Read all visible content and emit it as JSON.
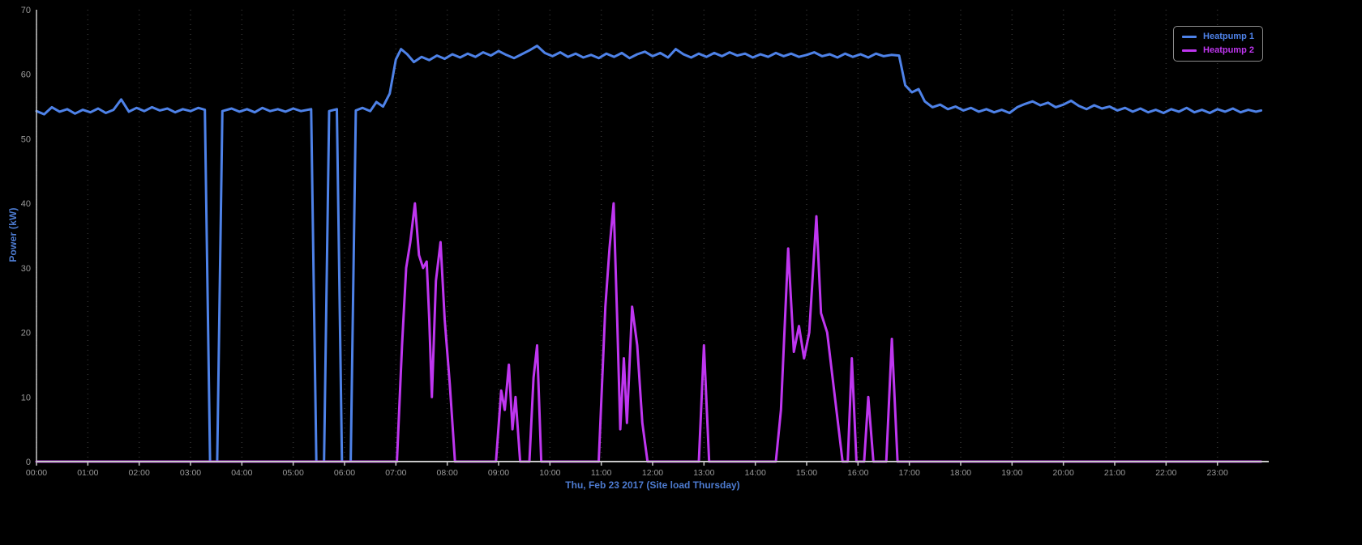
{
  "chart_data": {
    "type": "line",
    "title": "",
    "xlabel": "Thu, Feb 23 2017 (Site load Thursday)",
    "ylabel": "Power (kW)",
    "x_unit": "hours",
    "xlim": [
      0,
      24
    ],
    "ylim": [
      0,
      70
    ],
    "grid": "vertical-dotted",
    "legend_position": "top-right",
    "background": "#000000",
    "grid_color": "#333333",
    "axis_color": "#c8c8c8",
    "tick_label_color": "#9a9a9a",
    "axis_title_color": "#4d7bd0",
    "legend_border_color": "#8c8c8c",
    "y_ticks": [
      0,
      10,
      20,
      30,
      40,
      50,
      60,
      70
    ],
    "x_ticks": [
      {
        "t": 0,
        "label": "00:00"
      },
      {
        "t": 1,
        "label": "01:00"
      },
      {
        "t": 2,
        "label": "02:00"
      },
      {
        "t": 3,
        "label": "03:00"
      },
      {
        "t": 4,
        "label": "04:00"
      },
      {
        "t": 5,
        "label": "05:00"
      },
      {
        "t": 6,
        "label": "06:00"
      },
      {
        "t": 7,
        "label": "07:00"
      },
      {
        "t": 8,
        "label": "08:00"
      },
      {
        "t": 9,
        "label": "09:00"
      },
      {
        "t": 10,
        "label": "10:00"
      },
      {
        "t": 11,
        "label": "11:00"
      },
      {
        "t": 12,
        "label": "12:00"
      },
      {
        "t": 13,
        "label": "13:00"
      },
      {
        "t": 14,
        "label": "14:00"
      },
      {
        "t": 15,
        "label": "15:00"
      },
      {
        "t": 16,
        "label": "16:00"
      },
      {
        "t": 17,
        "label": "17:00"
      },
      {
        "t": 18,
        "label": "18:00"
      },
      {
        "t": 19,
        "label": "19:00"
      },
      {
        "t": 20,
        "label": "20:00"
      },
      {
        "t": 21,
        "label": "21:00"
      },
      {
        "t": 22,
        "label": "22:00"
      },
      {
        "t": 23,
        "label": "23:00"
      }
    ],
    "series": [
      {
        "name": "Heatpump 1",
        "color": "#4e82e8",
        "points": [
          [
            0.0,
            54.3
          ],
          [
            0.15,
            53.8
          ],
          [
            0.3,
            54.9
          ],
          [
            0.45,
            54.2
          ],
          [
            0.6,
            54.6
          ],
          [
            0.75,
            53.9
          ],
          [
            0.9,
            54.5
          ],
          [
            1.05,
            54.1
          ],
          [
            1.2,
            54.7
          ],
          [
            1.35,
            54.0
          ],
          [
            1.5,
            54.5
          ],
          [
            1.65,
            56.1
          ],
          [
            1.8,
            54.2
          ],
          [
            1.95,
            54.8
          ],
          [
            2.1,
            54.3
          ],
          [
            2.25,
            54.9
          ],
          [
            2.4,
            54.4
          ],
          [
            2.55,
            54.7
          ],
          [
            2.7,
            54.1
          ],
          [
            2.85,
            54.6
          ],
          [
            3.0,
            54.3
          ],
          [
            3.15,
            54.8
          ],
          [
            3.28,
            54.5
          ],
          [
            3.38,
            0
          ],
          [
            3.52,
            0
          ],
          [
            3.62,
            54.3
          ],
          [
            3.8,
            54.7
          ],
          [
            3.95,
            54.2
          ],
          [
            4.1,
            54.6
          ],
          [
            4.25,
            54.1
          ],
          [
            4.4,
            54.8
          ],
          [
            4.55,
            54.3
          ],
          [
            4.7,
            54.6
          ],
          [
            4.85,
            54.2
          ],
          [
            5.0,
            54.7
          ],
          [
            5.15,
            54.3
          ],
          [
            5.35,
            54.6
          ],
          [
            5.45,
            0
          ],
          [
            5.6,
            0
          ],
          [
            5.7,
            54.3
          ],
          [
            5.85,
            54.6
          ],
          [
            5.95,
            0
          ],
          [
            6.12,
            0
          ],
          [
            6.22,
            54.4
          ],
          [
            6.35,
            54.8
          ],
          [
            6.5,
            54.3
          ],
          [
            6.62,
            55.7
          ],
          [
            6.75,
            55.0
          ],
          [
            6.88,
            57.0
          ],
          [
            7.0,
            62.3
          ],
          [
            7.1,
            63.9
          ],
          [
            7.22,
            63.1
          ],
          [
            7.35,
            61.9
          ],
          [
            7.5,
            62.7
          ],
          [
            7.65,
            62.2
          ],
          [
            7.8,
            62.9
          ],
          [
            7.95,
            62.4
          ],
          [
            8.1,
            63.1
          ],
          [
            8.25,
            62.6
          ],
          [
            8.4,
            63.2
          ],
          [
            8.55,
            62.7
          ],
          [
            8.7,
            63.4
          ],
          [
            8.85,
            62.9
          ],
          [
            9.0,
            63.6
          ],
          [
            9.15,
            63.0
          ],
          [
            9.3,
            62.5
          ],
          [
            9.45,
            63.1
          ],
          [
            9.6,
            63.7
          ],
          [
            9.75,
            64.4
          ],
          [
            9.9,
            63.3
          ],
          [
            10.05,
            62.8
          ],
          [
            10.2,
            63.4
          ],
          [
            10.35,
            62.7
          ],
          [
            10.5,
            63.2
          ],
          [
            10.65,
            62.6
          ],
          [
            10.8,
            63.0
          ],
          [
            10.95,
            62.5
          ],
          [
            11.1,
            63.2
          ],
          [
            11.25,
            62.7
          ],
          [
            11.4,
            63.3
          ],
          [
            11.55,
            62.5
          ],
          [
            11.7,
            63.1
          ],
          [
            11.85,
            63.5
          ],
          [
            12.0,
            62.8
          ],
          [
            12.15,
            63.3
          ],
          [
            12.3,
            62.6
          ],
          [
            12.45,
            63.9
          ],
          [
            12.6,
            63.1
          ],
          [
            12.75,
            62.6
          ],
          [
            12.9,
            63.2
          ],
          [
            13.05,
            62.7
          ],
          [
            13.2,
            63.3
          ],
          [
            13.35,
            62.8
          ],
          [
            13.5,
            63.4
          ],
          [
            13.65,
            62.9
          ],
          [
            13.8,
            63.2
          ],
          [
            13.95,
            62.6
          ],
          [
            14.1,
            63.1
          ],
          [
            14.25,
            62.7
          ],
          [
            14.4,
            63.3
          ],
          [
            14.55,
            62.8
          ],
          [
            14.7,
            63.2
          ],
          [
            14.85,
            62.7
          ],
          [
            15.0,
            63.0
          ],
          [
            15.15,
            63.4
          ],
          [
            15.3,
            62.8
          ],
          [
            15.45,
            63.1
          ],
          [
            15.6,
            62.6
          ],
          [
            15.75,
            63.2
          ],
          [
            15.9,
            62.7
          ],
          [
            16.05,
            63.1
          ],
          [
            16.2,
            62.6
          ],
          [
            16.35,
            63.2
          ],
          [
            16.5,
            62.8
          ],
          [
            16.65,
            63.0
          ],
          [
            16.8,
            62.9
          ],
          [
            16.92,
            58.3
          ],
          [
            17.05,
            57.2
          ],
          [
            17.18,
            57.7
          ],
          [
            17.3,
            55.8
          ],
          [
            17.45,
            54.9
          ],
          [
            17.6,
            55.3
          ],
          [
            17.75,
            54.6
          ],
          [
            17.9,
            55.0
          ],
          [
            18.05,
            54.4
          ],
          [
            18.2,
            54.8
          ],
          [
            18.35,
            54.2
          ],
          [
            18.5,
            54.6
          ],
          [
            18.65,
            54.1
          ],
          [
            18.8,
            54.5
          ],
          [
            18.95,
            54.0
          ],
          [
            19.1,
            54.9
          ],
          [
            19.25,
            55.4
          ],
          [
            19.4,
            55.8
          ],
          [
            19.55,
            55.2
          ],
          [
            19.7,
            55.6
          ],
          [
            19.85,
            54.9
          ],
          [
            20.0,
            55.3
          ],
          [
            20.15,
            55.9
          ],
          [
            20.3,
            55.1
          ],
          [
            20.45,
            54.6
          ],
          [
            20.6,
            55.2
          ],
          [
            20.75,
            54.7
          ],
          [
            20.9,
            55.0
          ],
          [
            21.05,
            54.4
          ],
          [
            21.2,
            54.8
          ],
          [
            21.35,
            54.2
          ],
          [
            21.5,
            54.7
          ],
          [
            21.65,
            54.1
          ],
          [
            21.8,
            54.5
          ],
          [
            21.95,
            54.0
          ],
          [
            22.1,
            54.6
          ],
          [
            22.25,
            54.2
          ],
          [
            22.4,
            54.8
          ],
          [
            22.55,
            54.1
          ],
          [
            22.7,
            54.5
          ],
          [
            22.85,
            54.0
          ],
          [
            23.0,
            54.6
          ],
          [
            23.15,
            54.2
          ],
          [
            23.3,
            54.7
          ],
          [
            23.45,
            54.1
          ],
          [
            23.6,
            54.5
          ],
          [
            23.75,
            54.2
          ],
          [
            23.85,
            54.4
          ]
        ]
      },
      {
        "name": "Heatpump 2",
        "color": "#bf36f0",
        "points": [
          [
            0.0,
            0
          ],
          [
            7.02,
            0
          ],
          [
            7.12,
            18
          ],
          [
            7.2,
            30
          ],
          [
            7.28,
            34
          ],
          [
            7.37,
            40
          ],
          [
            7.45,
            32
          ],
          [
            7.53,
            30
          ],
          [
            7.6,
            31
          ],
          [
            7.65,
            22
          ],
          [
            7.7,
            10
          ],
          [
            7.78,
            28
          ],
          [
            7.87,
            34
          ],
          [
            7.95,
            22
          ],
          [
            8.05,
            12
          ],
          [
            8.15,
            0
          ],
          [
            8.95,
            0
          ],
          [
            9.05,
            11
          ],
          [
            9.12,
            8
          ],
          [
            9.2,
            15
          ],
          [
            9.27,
            5
          ],
          [
            9.33,
            10
          ],
          [
            9.42,
            0
          ],
          [
            9.6,
            0
          ],
          [
            9.68,
            13
          ],
          [
            9.75,
            18
          ],
          [
            9.83,
            0
          ],
          [
            10.95,
            0
          ],
          [
            11.08,
            24
          ],
          [
            11.16,
            33
          ],
          [
            11.24,
            40
          ],
          [
            11.31,
            22
          ],
          [
            11.37,
            5
          ],
          [
            11.44,
            16
          ],
          [
            11.5,
            6
          ],
          [
            11.6,
            24
          ],
          [
            11.7,
            18
          ],
          [
            11.8,
            6
          ],
          [
            11.9,
            0
          ],
          [
            12.9,
            0
          ],
          [
            13.0,
            18
          ],
          [
            13.1,
            0
          ],
          [
            14.4,
            0
          ],
          [
            14.5,
            8
          ],
          [
            14.64,
            33
          ],
          [
            14.75,
            17
          ],
          [
            14.85,
            21
          ],
          [
            14.95,
            16
          ],
          [
            15.05,
            20
          ],
          [
            15.19,
            38
          ],
          [
            15.28,
            23
          ],
          [
            15.4,
            20
          ],
          [
            15.55,
            10
          ],
          [
            15.7,
            0
          ],
          [
            15.8,
            0
          ],
          [
            15.88,
            16
          ],
          [
            15.97,
            0
          ],
          [
            16.12,
            0
          ],
          [
            16.2,
            10
          ],
          [
            16.3,
            0
          ],
          [
            16.55,
            0
          ],
          [
            16.66,
            19
          ],
          [
            16.77,
            0
          ],
          [
            23.85,
            0
          ]
        ]
      }
    ]
  }
}
